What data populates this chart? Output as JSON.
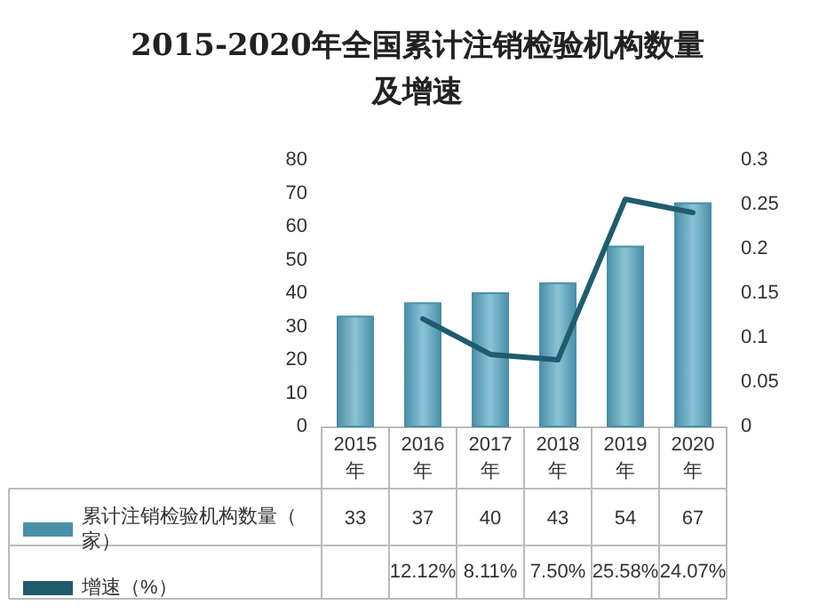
{
  "chart_data": {
    "type": "bar",
    "title": "2015-2020年全国累计注销检验机构数量及增速",
    "categories": [
      "2015年",
      "2016年",
      "2017年",
      "2018年",
      "2019年",
      "2020年"
    ],
    "series": [
      {
        "name": "累计注销检验机构数量（家）",
        "color": "#4a90a8",
        "values": [
          33,
          37,
          40,
          43,
          54,
          67
        ],
        "value_labels": [
          "33",
          "37",
          "40",
          "43",
          "54",
          "67"
        ]
      },
      {
        "name": "增速（%）",
        "type": "line",
        "axis": "y2",
        "color": "#1f5c6e",
        "values": [
          null,
          0.1212,
          0.0811,
          0.075,
          0.2558,
          0.2407
        ],
        "value_labels": [
          null,
          "12.12%",
          "8.11%",
          "7.50%",
          "25.58%",
          "24.07%"
        ]
      }
    ],
    "ylim": [
      0,
      80
    ],
    "yticks": [
      0,
      10,
      20,
      30,
      40,
      50,
      60,
      70,
      80
    ],
    "y2lim": [
      0,
      0.3
    ],
    "y2ticks": [
      0,
      0.05,
      0.1,
      0.15,
      0.2,
      0.25,
      0.3
    ],
    "grid": false,
    "legend": "bottom left",
    "marker": "none"
  }
}
